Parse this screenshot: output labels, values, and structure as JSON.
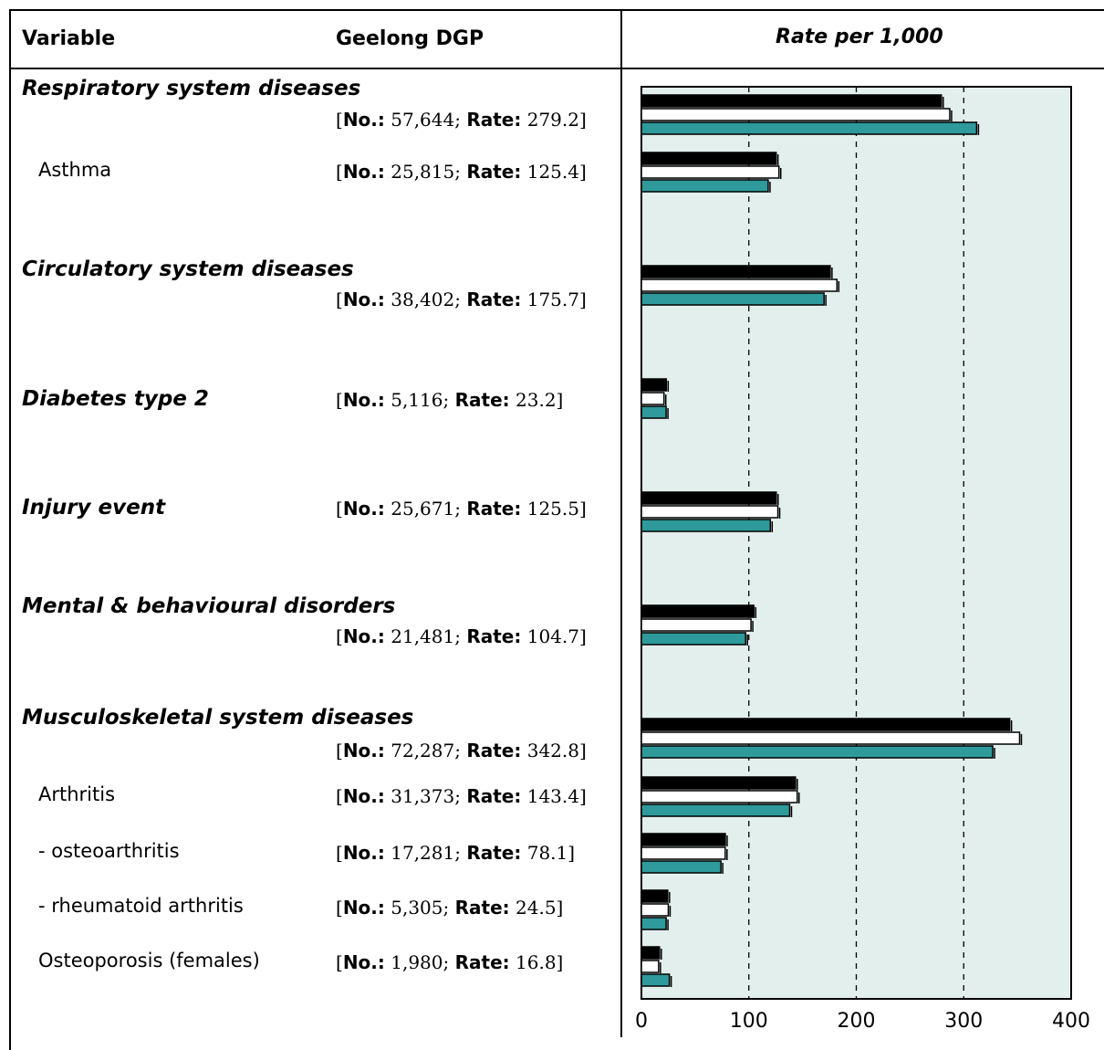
{
  "headers": {
    "variable": "Variable",
    "region": "Geelong DGP",
    "rate": "Rate per 1,000"
  },
  "rows": [
    {
      "label": "Respiratory system diseases",
      "kind": "category",
      "no_label": "No.:",
      "no": "57,644",
      "rate_label": "Rate:",
      "rate": "279.2"
    },
    {
      "label": "Asthma",
      "kind": "sub",
      "no_label": "No.:",
      "no": "25,815",
      "rate_label": "Rate:",
      "rate": "125.4"
    },
    {
      "label": "Circulatory system diseases",
      "kind": "category",
      "no_label": "No.:",
      "no": "38,402",
      "rate_label": "Rate:",
      "rate": "175.7"
    },
    {
      "label": "Diabetes type 2",
      "kind": "category",
      "no_label": "No.:",
      "no": "5,116",
      "rate_label": "Rate:",
      "rate": "23.2"
    },
    {
      "label": "Injury event",
      "kind": "category",
      "no_label": "No.:",
      "no": "25,671",
      "rate_label": "Rate:",
      "rate": "125.5"
    },
    {
      "label": "Mental & behavioural disorders",
      "kind": "category",
      "no_label": "No.:",
      "no": "21,481",
      "rate_label": "Rate:",
      "rate": "104.7"
    },
    {
      "label": "Musculoskeletal system diseases",
      "kind": "category",
      "no_label": "No.:",
      "no": "72,287",
      "rate_label": "Rate:",
      "rate": "342.8"
    },
    {
      "label": "Arthritis",
      "kind": "sub",
      "no_label": "No.:",
      "no": "31,373",
      "rate_label": "Rate:",
      "rate": "143.4"
    },
    {
      "label": "- osteoarthritis",
      "kind": "sub",
      "no_label": "No.:",
      "no": "17,281",
      "rate_label": "Rate:",
      "rate": "78.1"
    },
    {
      "label": "- rheumatoid arthritis",
      "kind": "sub",
      "no_label": "No.:",
      "no": "5,305",
      "rate_label": "Rate:",
      "rate": "24.5"
    },
    {
      "label": "Osteoporosis (females)",
      "kind": "sub",
      "no_label": "No.:",
      "no": "1,980",
      "rate_label": "Rate:",
      "rate": "16.8"
    }
  ],
  "chart_data": {
    "type": "bar",
    "orientation": "horizontal",
    "categories": [
      "Respiratory system diseases",
      "Asthma",
      "Circulatory system diseases",
      "Diabetes type 2",
      "Injury event",
      "Mental & behavioural disorders",
      "Musculoskeletal system diseases",
      "Arthritis",
      "- osteoarthritis",
      "- rheumatoid arthritis",
      "Osteoporosis (females)"
    ],
    "series": [
      {
        "color": "#000000",
        "values": [
          279.2,
          125.4,
          175.7,
          23.2,
          125.5,
          104.7,
          342.8,
          143.4,
          78.1,
          24.5,
          16.8
        ]
      },
      {
        "color": "#ffffff",
        "values": [
          287,
          128,
          182,
          21,
          127,
          102,
          352,
          145,
          78,
          25,
          16
        ]
      },
      {
        "color": "#2e9a9c",
        "values": [
          312,
          118,
          170,
          23,
          120,
          97,
          327,
          138,
          74,
          23,
          26
        ]
      }
    ],
    "xlim": [
      0,
      400
    ],
    "xticks": [
      "0",
      "100",
      "200",
      "300",
      "400"
    ],
    "grid": "dashed vertical at 100, 200, 300",
    "background": "#e2efed",
    "title": "Rate per 1,000"
  }
}
